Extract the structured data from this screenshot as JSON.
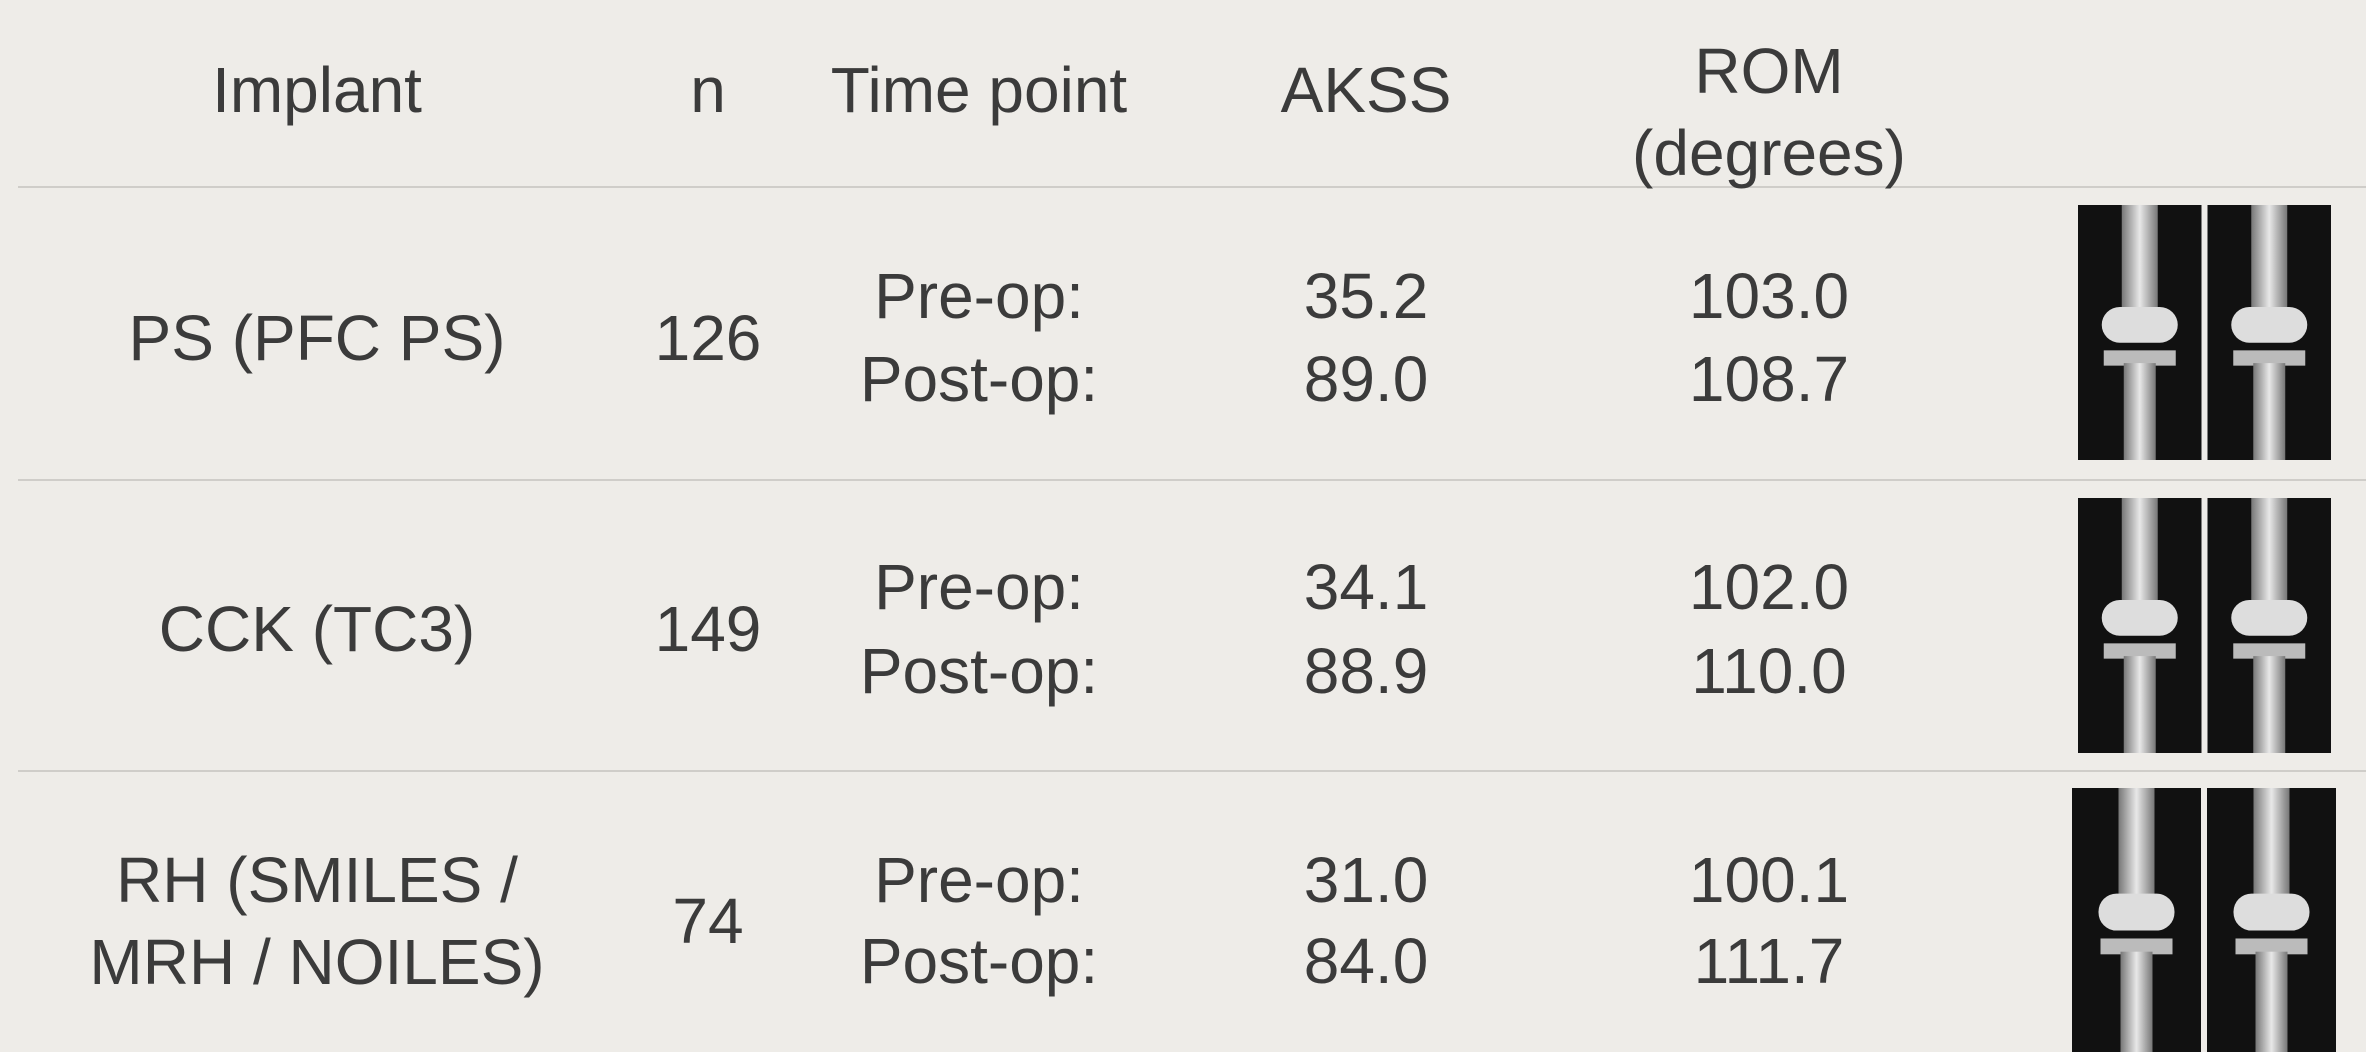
{
  "table": {
    "header": [
      "Implant",
      "n",
      "Time point",
      "AKSS",
      "ROM\n(degrees)"
    ],
    "rows": [
      {
        "implant": "PS (PFC PS)",
        "n": "126",
        "time_points": [
          "Pre-op:",
          "Post-op:"
        ],
        "akss": [
          "35.2",
          "89.0"
        ],
        "rom": [
          "103.0",
          "108.7"
        ]
      },
      {
        "implant": "CCK (TC3)",
        "n": "149",
        "time_points": [
          "Pre-op:",
          "Post-op:"
        ],
        "akss": [
          "34.1",
          "88.9"
        ],
        "rom": [
          "102.0",
          "110.0"
        ]
      },
      {
        "implant": "RH (SMILES /\nMRH / NOILES)",
        "n": "74",
        "time_points": [
          "Pre-op:",
          "Post-op:"
        ],
        "akss": [
          "31.0",
          "84.0"
        ],
        "rom": [
          "100.1",
          "111.7"
        ]
      }
    ]
  }
}
